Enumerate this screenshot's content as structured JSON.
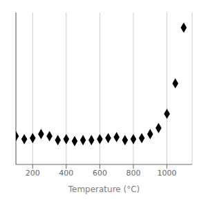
{
  "chart_data": {
    "type": "scatter",
    "xlabel": "Temperature (°C)",
    "x": [
      100,
      150,
      200,
      250,
      300,
      350,
      400,
      450,
      500,
      550,
      600,
      650,
      700,
      750,
      800,
      850,
      900,
      950,
      1000,
      1050,
      1100
    ],
    "values": [
      2.8,
      2.5,
      2.6,
      3.0,
      2.8,
      2.4,
      2.5,
      2.3,
      2.4,
      2.4,
      2.5,
      2.6,
      2.7,
      2.4,
      2.5,
      2.6,
      3.0,
      3.6,
      5.0,
      8.0,
      13.5
    ],
    "color": "black",
    "marker": "diamond",
    "xlim": [
      100,
      1150
    ],
    "ylim": [
      0,
      15
    ],
    "xticks": [
      200,
      400,
      600,
      800,
      1000
    ],
    "grid": "x",
    "tick_labels": "x"
  }
}
